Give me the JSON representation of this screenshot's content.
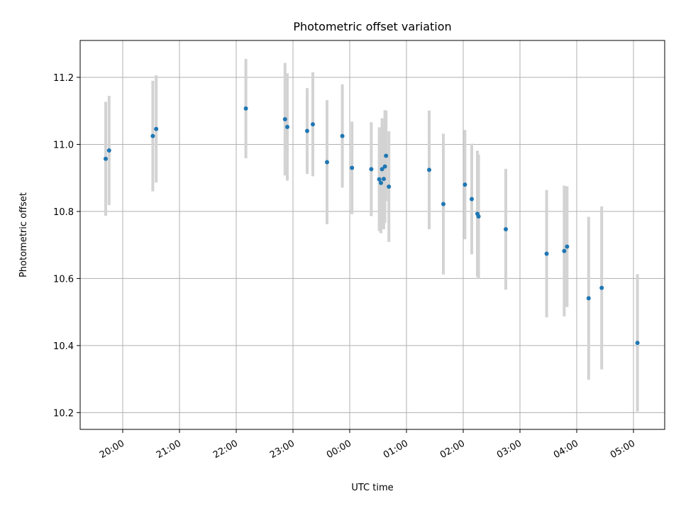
{
  "chart_data": {
    "type": "scatter",
    "title": "Photometric offset variation",
    "xlabel": "UTC time",
    "ylabel": "Photometric offset",
    "x_unit": "hours (UTC, relative to 00:00; negative = previous evening)",
    "xlim": [
      -4.75,
      5.55
    ],
    "ylim": [
      10.15,
      11.31
    ],
    "x_ticks": [
      {
        "value": -4,
        "label": "20:00"
      },
      {
        "value": -3,
        "label": "21:00"
      },
      {
        "value": -2,
        "label": "22:00"
      },
      {
        "value": -1,
        "label": "23:00"
      },
      {
        "value": 0,
        "label": "00:00"
      },
      {
        "value": 1,
        "label": "01:00"
      },
      {
        "value": 2,
        "label": "02:00"
      },
      {
        "value": 3,
        "label": "03:00"
      },
      {
        "value": 4,
        "label": "04:00"
      },
      {
        "value": 5,
        "label": "05:00"
      }
    ],
    "y_ticks": [
      {
        "value": 10.2,
        "label": "10.2"
      },
      {
        "value": 10.4,
        "label": "10.4"
      },
      {
        "value": 10.6,
        "label": "10.6"
      },
      {
        "value": 10.8,
        "label": "10.8"
      },
      {
        "value": 11.0,
        "label": "11.0"
      },
      {
        "value": 11.2,
        "label": "11.2"
      }
    ],
    "grid": true,
    "point_color": "#1f77b4",
    "errorbar_color": "#d3d3d3",
    "points": [
      {
        "x": -4.3,
        "y": 10.957,
        "err": 0.17
      },
      {
        "x": -4.24,
        "y": 10.982,
        "err": 0.163
      },
      {
        "x": -3.47,
        "y": 11.025,
        "err": 0.165
      },
      {
        "x": -3.41,
        "y": 11.046,
        "err": 0.16
      },
      {
        "x": -1.83,
        "y": 11.107,
        "err": 0.148
      },
      {
        "x": -1.14,
        "y": 11.075,
        "err": 0.168
      },
      {
        "x": -1.1,
        "y": 11.052,
        "err": 0.16
      },
      {
        "x": -0.75,
        "y": 11.04,
        "err": 0.128
      },
      {
        "x": -0.65,
        "y": 11.06,
        "err": 0.155
      },
      {
        "x": -0.4,
        "y": 10.947,
        "err": 0.185
      },
      {
        "x": -0.13,
        "y": 11.025,
        "err": 0.154
      },
      {
        "x": 0.04,
        "y": 10.93,
        "err": 0.138
      },
      {
        "x": 0.38,
        "y": 10.926,
        "err": 0.14
      },
      {
        "x": 0.52,
        "y": 10.896,
        "err": 0.155
      },
      {
        "x": 0.55,
        "y": 10.885,
        "err": 0.15
      },
      {
        "x": 0.57,
        "y": 10.926,
        "err": 0.152
      },
      {
        "x": 0.6,
        "y": 10.897,
        "err": 0.15
      },
      {
        "x": 0.62,
        "y": 10.934,
        "err": 0.168
      },
      {
        "x": 0.64,
        "y": 10.966,
        "err": 0.135
      },
      {
        "x": 0.69,
        "y": 10.874,
        "err": 0.165
      },
      {
        "x": 1.4,
        "y": 10.924,
        "err": 0.177
      },
      {
        "x": 1.65,
        "y": 10.822,
        "err": 0.21
      },
      {
        "x": 2.03,
        "y": 10.88,
        "err": 0.163
      },
      {
        "x": 2.15,
        "y": 10.837,
        "err": 0.165
      },
      {
        "x": 2.25,
        "y": 10.793,
        "err": 0.188
      },
      {
        "x": 2.27,
        "y": 10.785,
        "err": 0.185
      },
      {
        "x": 2.75,
        "y": 10.747,
        "err": 0.18
      },
      {
        "x": 3.47,
        "y": 10.674,
        "err": 0.19
      },
      {
        "x": 3.78,
        "y": 10.682,
        "err": 0.195
      },
      {
        "x": 3.83,
        "y": 10.695,
        "err": 0.18
      },
      {
        "x": 4.21,
        "y": 10.541,
        "err": 0.243
      },
      {
        "x": 4.44,
        "y": 10.572,
        "err": 0.243
      },
      {
        "x": 5.07,
        "y": 10.408,
        "err": 0.205
      }
    ]
  }
}
